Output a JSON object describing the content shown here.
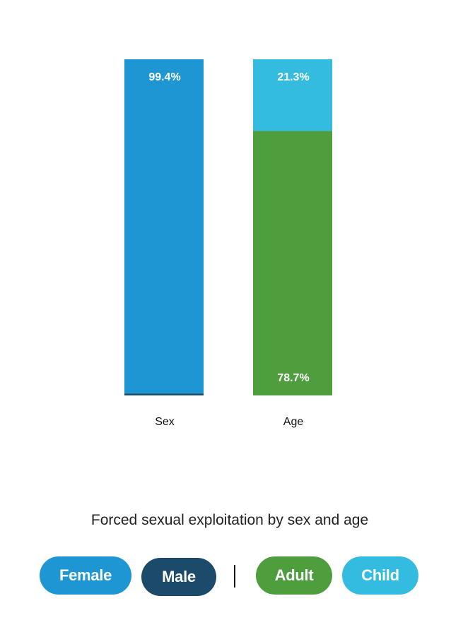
{
  "chart_data": {
    "type": "bar",
    "stacked": true,
    "title": "Forced sexual exploitation by sex and age",
    "ylim": [
      0,
      100
    ],
    "categories": [
      "Sex",
      "Age"
    ],
    "bars": [
      {
        "category": "Sex",
        "segments": [
          {
            "name": "Male",
            "value": 0.6,
            "color": "#1b4a6b",
            "label": ""
          },
          {
            "name": "Female",
            "value": 99.4,
            "color": "#1e96d4",
            "label": "99.4%"
          }
        ]
      },
      {
        "category": "Age",
        "segments": [
          {
            "name": "Adult",
            "value": 78.7,
            "color": "#4e9e3e",
            "label": "78.7%"
          },
          {
            "name": "Child",
            "value": 21.3,
            "color": "#33bbe0",
            "label": "21.3%"
          }
        ]
      }
    ]
  },
  "legend": {
    "items": [
      {
        "label": "Female",
        "color": "#1e96d4"
      },
      {
        "label": "Male",
        "color": "#1b4a6b"
      },
      {
        "label": "Adult",
        "color": "#4e9e3e"
      },
      {
        "label": "Child",
        "color": "#33bbe0"
      }
    ]
  }
}
